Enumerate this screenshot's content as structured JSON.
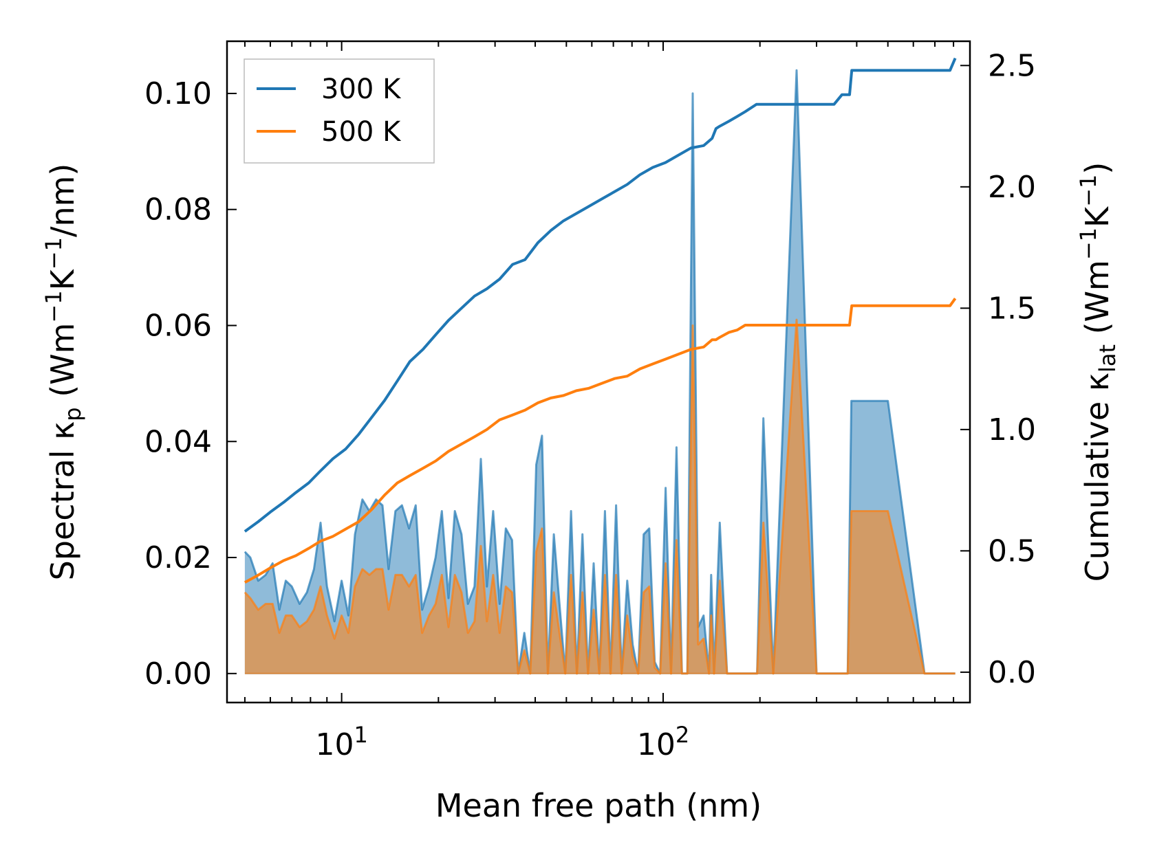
{
  "chart_data": {
    "type": "line",
    "xscale": "log",
    "xlim": [
      4.4,
      900
    ],
    "ylim_left": [
      -0.005,
      0.109
    ],
    "ylim_right": [
      -0.125,
      2.6
    ],
    "xticks": [
      {
        "value": 10,
        "base": "10",
        "exp": "1"
      },
      {
        "value": 100,
        "base": "10",
        "exp": "2"
      }
    ],
    "yticks_left": [
      "0.00",
      "0.02",
      "0.04",
      "0.06",
      "0.08",
      "0.10"
    ],
    "yticks_right": [
      "0.0",
      "0.5",
      "1.0",
      "1.5",
      "2.0",
      "2.5"
    ],
    "xlabel": "Mean free path (nm)",
    "ylabel_left": {
      "main": "Spectral κ",
      "sub": "p",
      "unit_open": " (Wm",
      "sup1": "−1",
      "mid": "K",
      "sup2": "−1",
      "unit_close": "/nm)"
    },
    "ylabel_right": {
      "main": "Cumulative κ",
      "sub": "lat",
      "unit_open": " (Wm",
      "sup1": "−1",
      "mid": "K",
      "sup2": "−1",
      "unit_close": ")"
    },
    "legend": {
      "position": "top-left",
      "entries": [
        "300 K",
        "500 K"
      ]
    },
    "colors": {
      "300 K": "#1f77b4",
      "500 K": "#ff7f0e",
      "fill_300": "#1f77b4",
      "fill_500": "#e8903f"
    },
    "spectral": [
      {
        "name": "300 K",
        "x": [
          5.0,
          5.2,
          5.5,
          5.8,
          6.1,
          6.4,
          6.7,
          7.0,
          7.4,
          7.8,
          8.2,
          8.6,
          9.0,
          9.5,
          10.0,
          10.5,
          11.0,
          11.6,
          12.2,
          12.8,
          13.4,
          14.0,
          14.7,
          15.4,
          16.2,
          17.0,
          17.8,
          18.7,
          19.6,
          20.5,
          21.5,
          22.5,
          23.6,
          24.7,
          25.9,
          27.1,
          28.3,
          29.6,
          31.0,
          32.4,
          33.9,
          35.4,
          37.0,
          38.6,
          40.3,
          42.0,
          43.8,
          45.7,
          47.6,
          49.6,
          51.7,
          53.9,
          56.1,
          58.4,
          60.8,
          63.3,
          65.9,
          68.6,
          71.4,
          74.3,
          77.3,
          80.4,
          83.6,
          87.0,
          90.5,
          94.1,
          97.9,
          101.8,
          105.8,
          110.0,
          114.4,
          118.9,
          123.6,
          128.5,
          133.6,
          138.9,
          141.0,
          144.0,
          150.0,
          158.0,
          165.0,
          172.0,
          180.0,
          188.0,
          196.0,
          205.0,
          220.0,
          260.0,
          300.0,
          340.0,
          345.0,
          355.0,
          365.0,
          375.0,
          385.0,
          400.0,
          500.0,
          650.0,
          790.0,
          800.0,
          810.0
        ],
        "values": [
          0.021,
          0.02,
          0.016,
          0.017,
          0.019,
          0.011,
          0.016,
          0.015,
          0.012,
          0.014,
          0.018,
          0.026,
          0.015,
          0.009,
          0.016,
          0.01,
          0.024,
          0.03,
          0.028,
          0.03,
          0.029,
          0.018,
          0.028,
          0.029,
          0.025,
          0.029,
          0.011,
          0.015,
          0.02,
          0.028,
          0.013,
          0.028,
          0.024,
          0.012,
          0.015,
          0.037,
          0.015,
          0.028,
          0.012,
          0.025,
          0.023,
          0.0,
          0.007,
          0.0,
          0.036,
          0.041,
          0.0,
          0.024,
          0.012,
          0.0,
          0.028,
          0.0,
          0.024,
          0.0,
          0.019,
          0.0,
          0.028,
          0.0,
          0.029,
          0.0,
          0.016,
          0.005,
          0.0,
          0.024,
          0.025,
          0.002,
          0.0,
          0.032,
          0.0,
          0.039,
          0.0,
          0.0,
          0.1,
          0.008,
          0.01,
          0.0,
          0.017,
          0.0,
          0.026,
          0.0,
          0.0,
          0.0,
          0.0,
          0.0,
          0.0,
          0.044,
          0.0,
          0.104,
          0.0,
          0.0,
          0.0,
          0.0,
          0.0,
          0.0,
          0.047,
          0.047,
          0.047,
          0.0,
          0.0,
          0.0,
          0.0
        ]
      },
      {
        "name": "500 K",
        "x": [
          5.0,
          5.2,
          5.5,
          5.8,
          6.1,
          6.4,
          6.7,
          7.0,
          7.4,
          7.8,
          8.2,
          8.6,
          9.0,
          9.5,
          10.0,
          10.5,
          11.0,
          11.6,
          12.2,
          12.8,
          13.4,
          14.0,
          14.7,
          15.4,
          16.2,
          17.0,
          17.8,
          18.7,
          19.6,
          20.5,
          21.5,
          22.5,
          23.6,
          24.7,
          25.9,
          27.1,
          28.3,
          29.6,
          31.0,
          32.4,
          33.9,
          35.4,
          37.0,
          38.6,
          40.3,
          42.0,
          43.8,
          45.7,
          47.6,
          49.6,
          51.7,
          53.9,
          56.1,
          58.4,
          60.8,
          63.3,
          65.9,
          68.6,
          71.4,
          74.3,
          77.3,
          80.4,
          83.6,
          87.0,
          90.5,
          94.1,
          97.9,
          101.8,
          105.8,
          110.0,
          114.4,
          118.9,
          123.6,
          128.5,
          133.6,
          138.9,
          141.0,
          144.0,
          150.0,
          158.0,
          165.0,
          172.0,
          180.0,
          188.0,
          196.0,
          205.0,
          220.0,
          260.0,
          300.0,
          340.0,
          345.0,
          355.0,
          365.0,
          375.0,
          385.0,
          400.0,
          500.0,
          650.0,
          790.0,
          800.0,
          810.0
        ],
        "values": [
          0.014,
          0.013,
          0.011,
          0.012,
          0.012,
          0.007,
          0.01,
          0.01,
          0.008,
          0.009,
          0.011,
          0.015,
          0.01,
          0.006,
          0.01,
          0.007,
          0.015,
          0.018,
          0.017,
          0.018,
          0.018,
          0.011,
          0.017,
          0.017,
          0.015,
          0.017,
          0.007,
          0.01,
          0.012,
          0.017,
          0.008,
          0.017,
          0.014,
          0.007,
          0.009,
          0.022,
          0.009,
          0.017,
          0.007,
          0.015,
          0.014,
          0.0,
          0.004,
          0.0,
          0.021,
          0.025,
          0.0,
          0.014,
          0.007,
          0.0,
          0.017,
          0.0,
          0.014,
          0.0,
          0.011,
          0.0,
          0.017,
          0.0,
          0.017,
          0.0,
          0.01,
          0.003,
          0.0,
          0.014,
          0.015,
          0.001,
          0.0,
          0.019,
          0.0,
          0.023,
          0.0,
          0.0,
          0.06,
          0.005,
          0.006,
          0.0,
          0.01,
          0.0,
          0.016,
          0.0,
          0.0,
          0.0,
          0.0,
          0.0,
          0.0,
          0.026,
          0.0,
          0.061,
          0.0,
          0.0,
          0.0,
          0.0,
          0.0,
          0.0,
          0.028,
          0.028,
          0.028,
          0.0,
          0.0,
          0.0,
          0.0
        ]
      }
    ],
    "cumulative": [
      {
        "name": "300 K",
        "x": [
          5.0,
          5.5,
          6.0,
          6.6,
          7.2,
          7.9,
          8.6,
          9.4,
          10.3,
          11.3,
          12.4,
          13.6,
          14.9,
          16.3,
          17.9,
          19.6,
          21.5,
          23.6,
          25.9,
          28.3,
          31.0,
          34.0,
          37.2,
          40.8,
          44.7,
          49.0,
          53.7,
          58.8,
          64.4,
          70.6,
          77.3,
          84.7,
          92.8,
          101.7,
          111.4,
          122.0,
          133.7,
          142.0,
          146.0,
          150.0,
          160.0,
          170.0,
          180.0,
          195.0,
          220.0,
          260.0,
          300.0,
          340.0,
          360.0,
          380.0,
          386.0,
          400.0,
          500.0,
          650.0,
          780.0,
          810.0
        ],
        "values": [
          0.58,
          0.62,
          0.66,
          0.7,
          0.74,
          0.78,
          0.83,
          0.88,
          0.92,
          0.98,
          1.05,
          1.12,
          1.2,
          1.28,
          1.33,
          1.39,
          1.45,
          1.5,
          1.55,
          1.58,
          1.62,
          1.68,
          1.7,
          1.77,
          1.82,
          1.86,
          1.89,
          1.92,
          1.95,
          1.98,
          2.01,
          2.05,
          2.08,
          2.1,
          2.13,
          2.16,
          2.17,
          2.2,
          2.24,
          2.25,
          2.27,
          2.29,
          2.31,
          2.34,
          2.34,
          2.34,
          2.34,
          2.34,
          2.38,
          2.38,
          2.48,
          2.48,
          2.48,
          2.48,
          2.48,
          2.53
        ]
      },
      {
        "name": "500 K",
        "x": [
          5.0,
          5.5,
          6.0,
          6.6,
          7.2,
          7.9,
          8.6,
          9.4,
          10.3,
          11.3,
          12.4,
          13.6,
          14.9,
          16.3,
          17.9,
          19.6,
          21.5,
          23.6,
          25.9,
          28.3,
          31.0,
          34.0,
          37.2,
          40.8,
          44.7,
          49.0,
          53.7,
          58.8,
          64.4,
          70.6,
          77.3,
          84.7,
          92.8,
          101.7,
          111.4,
          122.0,
          133.7,
          142.0,
          146.0,
          150.0,
          160.0,
          170.0,
          180.0,
          195.0,
          220.0,
          260.0,
          300.0,
          340.0,
          360.0,
          380.0,
          386.0,
          400.0,
          500.0,
          650.0,
          780.0,
          810.0
        ],
        "values": [
          0.37,
          0.4,
          0.43,
          0.46,
          0.48,
          0.51,
          0.54,
          0.56,
          0.59,
          0.62,
          0.67,
          0.73,
          0.78,
          0.81,
          0.84,
          0.87,
          0.91,
          0.94,
          0.97,
          1.0,
          1.04,
          1.06,
          1.08,
          1.11,
          1.13,
          1.14,
          1.16,
          1.17,
          1.19,
          1.21,
          1.22,
          1.25,
          1.27,
          1.29,
          1.31,
          1.33,
          1.34,
          1.37,
          1.37,
          1.38,
          1.4,
          1.41,
          1.43,
          1.43,
          1.43,
          1.43,
          1.43,
          1.43,
          1.43,
          1.43,
          1.51,
          1.51,
          1.51,
          1.51,
          1.51,
          1.54
        ]
      }
    ]
  }
}
